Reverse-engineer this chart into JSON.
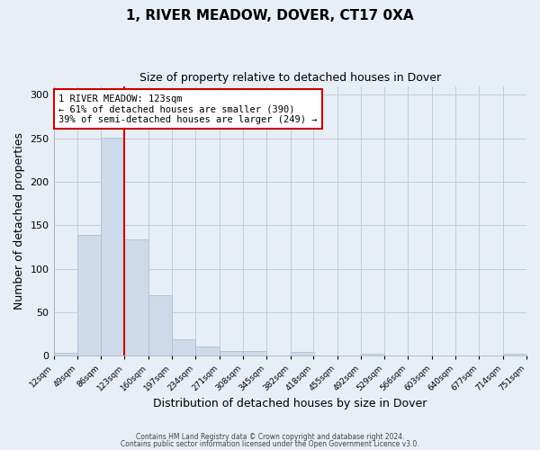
{
  "title": "1, RIVER MEADOW, DOVER, CT17 0XA",
  "subtitle": "Size of property relative to detached houses in Dover",
  "xlabel": "Distribution of detached houses by size in Dover",
  "ylabel": "Number of detached properties",
  "bar_color": "#cddaea",
  "bar_edge_color": "#adc0d8",
  "vline_x": 123,
  "vline_color": "#cc0000",
  "annotation_title": "1 RIVER MEADOW: 123sqm",
  "annotation_line1": "← 61% of detached houses are smaller (390)",
  "annotation_line2": "39% of semi-detached houses are larger (249) →",
  "annotation_box_color": "#cc0000",
  "bins": [
    12,
    49,
    86,
    123,
    160,
    197,
    234,
    271,
    308,
    345,
    382,
    418,
    455,
    492,
    529,
    566,
    603,
    640,
    677,
    714,
    751
  ],
  "bar_heights": [
    3,
    139,
    251,
    134,
    70,
    19,
    11,
    5,
    5,
    0,
    4,
    0,
    0,
    2,
    0,
    0,
    0,
    0,
    0,
    2
  ],
  "ylim": [
    0,
    310
  ],
  "yticks": [
    0,
    50,
    100,
    150,
    200,
    250,
    300
  ],
  "footer1": "Contains HM Land Registry data © Crown copyright and database right 2024.",
  "footer2": "Contains public sector information licensed under the Open Government Licence v3.0.",
  "background_color": "#e8eef5",
  "plot_bg_color": "#e8eef5",
  "grid_color": "#c0cdd8"
}
